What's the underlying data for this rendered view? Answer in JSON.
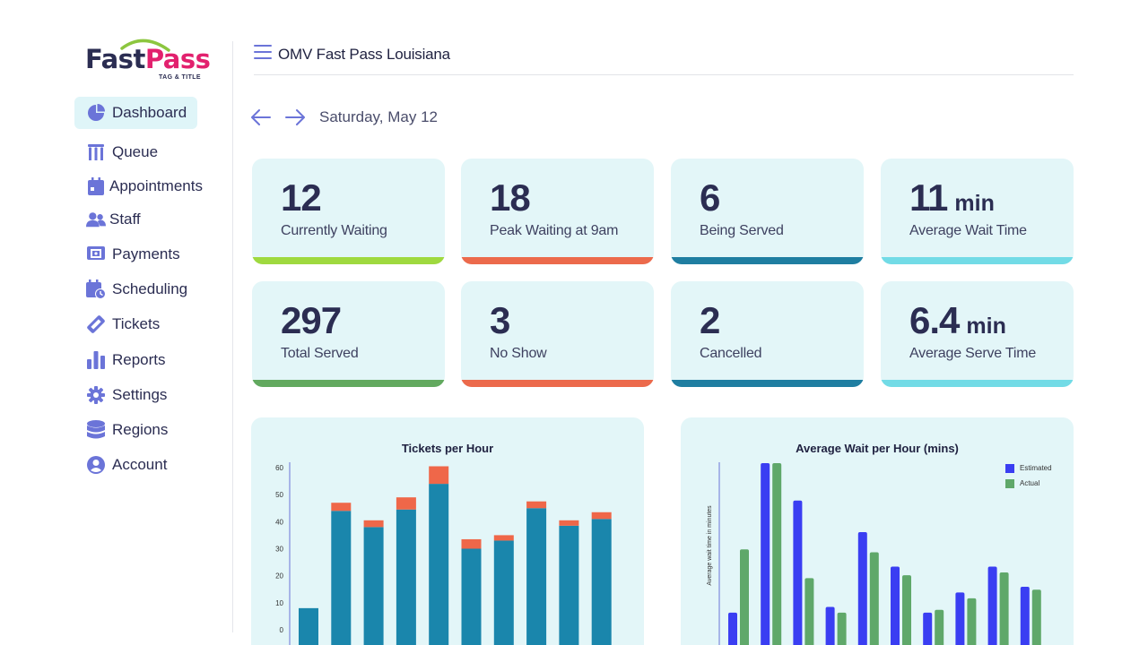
{
  "brand": {
    "logo_primary": "Fast",
    "logo_accent": "Pass",
    "logo_subtitle": "TAG & TITLE",
    "colors": {
      "dark": "#2b2d52",
      "accent": "#e2216e",
      "arc": "#8cc63f"
    }
  },
  "sidebar": {
    "items": [
      {
        "label": "Dashboard",
        "icon": "pie-chart-icon",
        "active": true
      },
      {
        "label": "Queue",
        "icon": "queue-icon",
        "active": false
      },
      {
        "label": "Appointments",
        "icon": "calendar-icon",
        "active": false
      },
      {
        "label": "Staff",
        "icon": "users-icon",
        "active": false
      },
      {
        "label": "Payments",
        "icon": "payment-icon",
        "active": false
      },
      {
        "label": "Scheduling",
        "icon": "schedule-icon",
        "active": false
      },
      {
        "label": "Tickets",
        "icon": "ticket-icon",
        "active": false
      },
      {
        "label": "Reports",
        "icon": "bar-chart-icon",
        "active": false
      },
      {
        "label": "Settings",
        "icon": "gear-icon",
        "active": false
      },
      {
        "label": "Regions",
        "icon": "database-icon",
        "active": false
      },
      {
        "label": "Account",
        "icon": "account-icon",
        "active": false
      }
    ],
    "icon_color": "#6b74d8"
  },
  "header": {
    "title": "OMV Fast Pass Louisiana",
    "menu_icon": "hamburger-menu-icon"
  },
  "datebar": {
    "date": "Saturday, May 12",
    "prev_icon": "arrow-left-icon",
    "next_icon": "arrow-right-icon"
  },
  "stats": [
    {
      "value": "12",
      "unit": "",
      "label": "Currently Waiting",
      "color": "#9fd93f"
    },
    {
      "value": "18",
      "unit": "",
      "label": "Peak Waiting at 9am",
      "color": "#ec6a4c"
    },
    {
      "value": "6",
      "unit": "",
      "label": "Being Served",
      "color": "#1f7ea1"
    },
    {
      "value": "11",
      "unit": "min",
      "label": "Average Wait Time",
      "color": "#72dbe6"
    },
    {
      "value": "297",
      "unit": "",
      "label": "Total Served",
      "color": "#62a95f"
    },
    {
      "value": "3",
      "unit": "",
      "label": "No Show",
      "color": "#ec6a4c"
    },
    {
      "value": "2",
      "unit": "",
      "label": "Cancelled",
      "color": "#1f7ea1"
    },
    {
      "value": "6.4",
      "unit": "min",
      "label": "Average Serve Time",
      "color": "#72dbe6"
    }
  ],
  "chart_data": [
    {
      "type": "bar",
      "title": "Tickets per Hour",
      "xlabel": "",
      "ylabel": "",
      "ylim": [
        0,
        60
      ],
      "yticks": [
        0,
        10,
        20,
        30,
        40,
        50,
        60
      ],
      "stacked": true,
      "grid": false,
      "series": [
        {
          "values": [
            8,
            44,
            38,
            44.5,
            54,
            30,
            33,
            45,
            38.5,
            41
          ],
          "color": "#1a86ac"
        },
        {
          "values": [
            0,
            3,
            2.5,
            4.5,
            6.5,
            3.5,
            2,
            2.5,
            2,
            2.5
          ],
          "color": "#ef6749"
        }
      ]
    },
    {
      "type": "bar",
      "title": "Average Wait per Hour (mins)",
      "xlabel": "",
      "ylabel": "Average wait time in minutes",
      "ylim": [
        0,
        62
      ],
      "grid": false,
      "legend": "top-right",
      "series": [
        {
          "name": "Estimated",
          "values": [
            10,
            62,
            49,
            12,
            38,
            26,
            10,
            17,
            26,
            19
          ],
          "color": "#3a3ef2"
        },
        {
          "name": "Actual",
          "values": [
            32,
            62,
            22,
            10,
            31,
            23,
            11,
            15,
            24,
            18
          ],
          "color": "#5fa86a"
        }
      ]
    }
  ]
}
